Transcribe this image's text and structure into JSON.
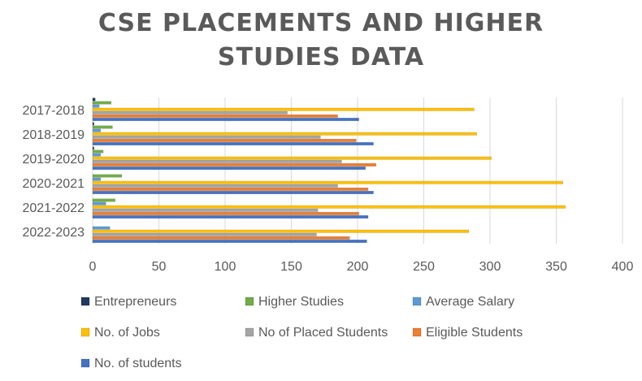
{
  "chart_data": {
    "type": "bar",
    "orientation": "horizontal",
    "title": "CSE PLACEMENTS AND HIGHER\nSTUDIES DATA",
    "categories": [
      "2017-2018",
      "2018-2019",
      "2019-2020",
      "2020-2021",
      "2021-2022",
      "2022-2023"
    ],
    "xlim": [
      0,
      400
    ],
    "xticks": [
      0,
      50,
      100,
      150,
      200,
      250,
      300,
      350,
      400
    ],
    "grid": true,
    "legend_position": "bottom",
    "series": [
      {
        "name": "Entrepreneurs",
        "color": "#203864",
        "values": [
          2,
          1,
          1,
          0,
          0,
          0
        ]
      },
      {
        "name": "Higher Studies",
        "color": "#70ad47",
        "values": [
          14,
          15,
          8,
          22,
          17,
          0
        ]
      },
      {
        "name": "Average Salary",
        "color": "#5b9bd5",
        "values": [
          5,
          6,
          6,
          6,
          10,
          13
        ]
      },
      {
        "name": "No. of Jobs",
        "color": "#ffc000",
        "values": [
          288,
          290,
          301,
          355,
          357,
          284
        ]
      },
      {
        "name": "No of Placed Students",
        "color": "#a5a5a5",
        "values": [
          147,
          172,
          188,
          185,
          170,
          169
        ]
      },
      {
        "name": "Eligible Students",
        "color": "#ed7d31",
        "values": [
          185,
          199,
          214,
          208,
          201,
          194
        ]
      },
      {
        "name": "No. of students",
        "color": "#4472c4",
        "values": [
          201,
          212,
          206,
          212,
          208,
          207
        ]
      }
    ]
  }
}
